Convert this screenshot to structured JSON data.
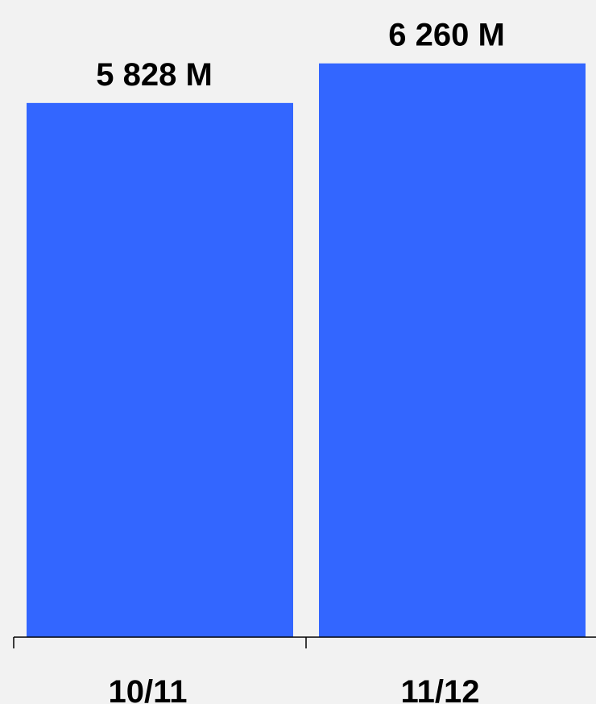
{
  "chart_data": {
    "type": "bar",
    "categories": [
      "10/11",
      "11/12"
    ],
    "values": [
      5828,
      6260
    ],
    "data_labels": [
      "5 828 M",
      "6 260 M"
    ],
    "unit": "M",
    "ylim": [
      0,
      6600
    ],
    "grid": false,
    "legend": "none",
    "colors": {
      "bar": "#3366ff",
      "background": "#f2f2f2",
      "axis": "#000000",
      "text": "#000000"
    }
  }
}
